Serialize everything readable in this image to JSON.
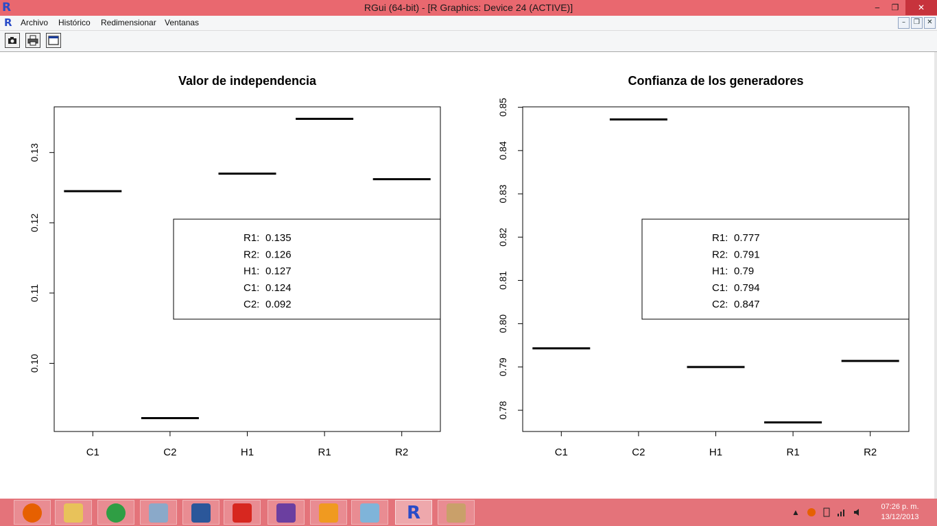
{
  "window": {
    "title": "RGui (64-bit) - [R Graphics: Device 24 (ACTIVE)]",
    "logo": "R",
    "buttons": {
      "minimize": "‒",
      "restore": "❐",
      "close": "✕"
    }
  },
  "menubar": {
    "logo": "R",
    "items": [
      "Archivo",
      "Histórico",
      "Redimensionar",
      "Ventanas"
    ],
    "mdi_buttons": {
      "minimize": "–",
      "restore": "❐",
      "close": "✕"
    }
  },
  "toolbar": {
    "buttons": [
      {
        "name": "camera-icon"
      },
      {
        "name": "printer-icon"
      },
      {
        "name": "window-icon"
      }
    ]
  },
  "chart_data": [
    {
      "type": "line",
      "title": "Valor de independencia",
      "categories": [
        "C1",
        "C2",
        "H1",
        "R1",
        "R2"
      ],
      "values": [
        0.1245,
        0.0922,
        0.127,
        0.1348,
        0.1262
      ],
      "yticks": [
        "0.10",
        "0.11",
        "0.12",
        "0.13"
      ],
      "ytick_values": [
        0.1,
        0.11,
        0.12,
        0.13
      ],
      "ylim": [
        0.0903,
        0.1365
      ],
      "legend": {
        "placement": "right",
        "labels": [
          "R1:",
          "R2:",
          "H1:",
          "C1:",
          "C2:"
        ],
        "values": [
          "0.135",
          "0.126",
          "0.127",
          "0.124",
          "0.092"
        ]
      }
    },
    {
      "type": "line",
      "title": "Confianza de los generadores",
      "categories": [
        "C1",
        "C2",
        "H1",
        "R1",
        "R2"
      ],
      "values": [
        0.7943,
        0.8472,
        0.79,
        0.7772,
        0.7914
      ],
      "yticks": [
        "0.78",
        "0.79",
        "0.80",
        "0.81",
        "0.82",
        "0.83",
        "0.84",
        "0.85"
      ],
      "ytick_values": [
        0.78,
        0.79,
        0.8,
        0.81,
        0.82,
        0.83,
        0.84,
        0.85
      ],
      "ylim": [
        0.7751,
        0.8501
      ],
      "legend": {
        "placement": "right",
        "labels": [
          "R1:",
          "R2:",
          "H1:",
          "C1:",
          "C2:"
        ],
        "values": [
          "0.777",
          "0.791",
          "0.79",
          "0.794",
          "0.847"
        ]
      }
    }
  ],
  "taskbar": {
    "apps": [
      {
        "name": "firefox-icon",
        "color": "#e66000"
      },
      {
        "name": "file-explorer-icon",
        "color": "#e8c25a"
      },
      {
        "name": "chrome-icon",
        "color": "#2f9e44"
      },
      {
        "name": "monitor-icon",
        "color": "#8aa9c9"
      },
      {
        "name": "document-icon",
        "color": "#2b579a"
      },
      {
        "name": "pdf-icon",
        "color": "#d7271f"
      },
      {
        "name": "pen-icon",
        "color": "#6b3fa0"
      },
      {
        "name": "media-player-icon",
        "color": "#f09a20"
      },
      {
        "name": "notepad-icon",
        "color": "#7fb4d9"
      },
      {
        "name": "r-icon",
        "color": "#2a4cc8",
        "label": "R"
      },
      {
        "name": "paint-icon",
        "color": "#c9a06a"
      }
    ],
    "clock": {
      "time": "07:26 p. m.",
      "date": "13/12/2013"
    }
  }
}
